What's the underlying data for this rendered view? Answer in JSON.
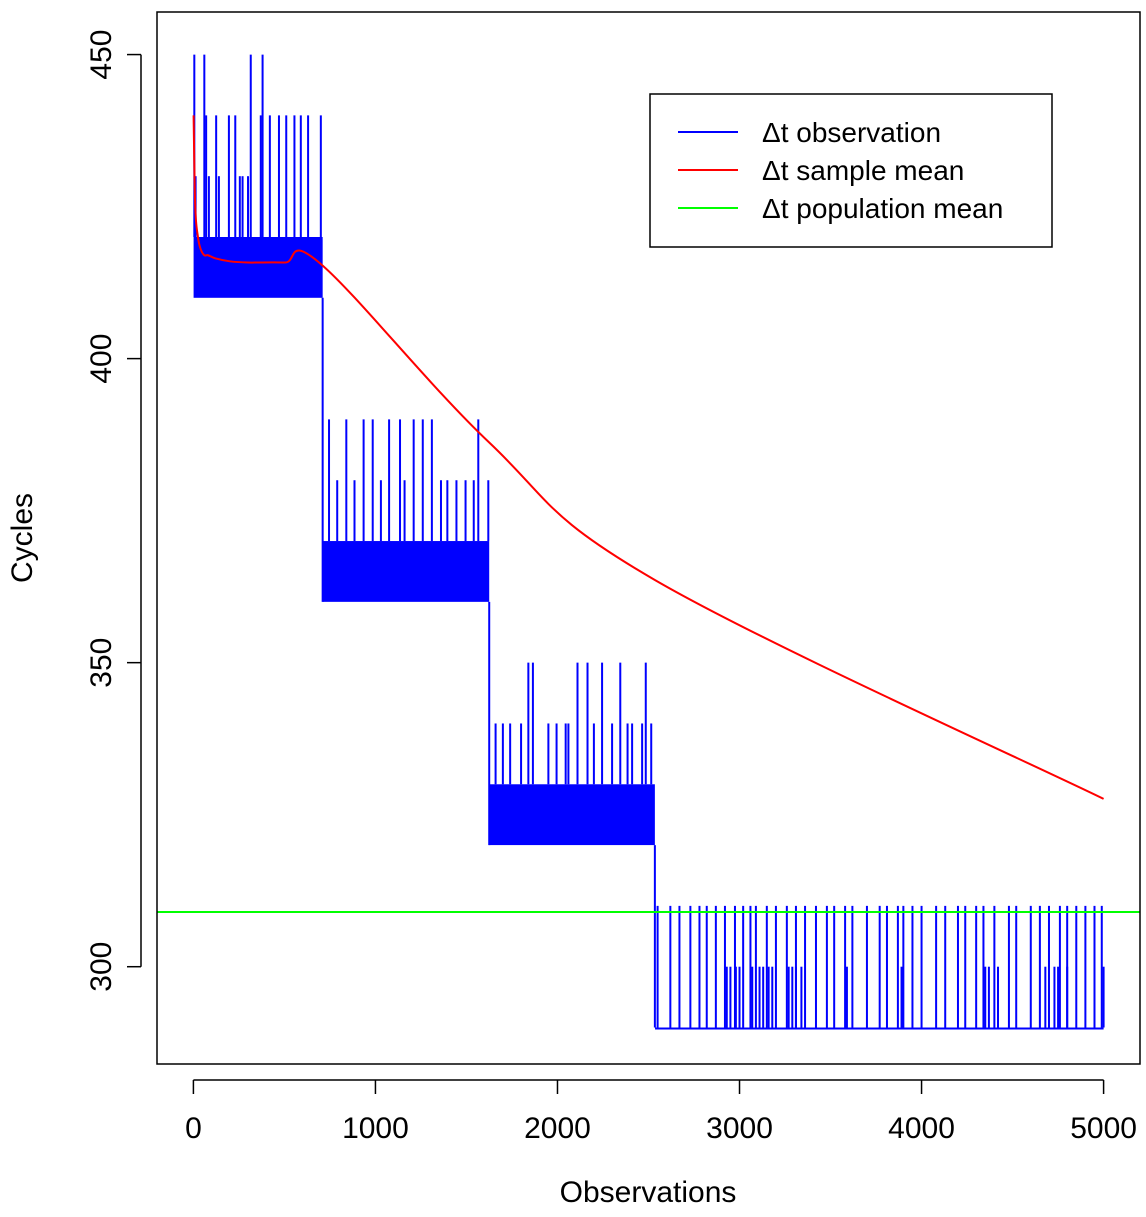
{
  "chart_data": {
    "type": "line",
    "title": "",
    "xlabel": "Observations",
    "ylabel": "Cycles",
    "xlim": [
      -200,
      5200
    ],
    "ylim": [
      284,
      457
    ],
    "x_ticks": [
      0,
      1000,
      2000,
      3000,
      4000,
      5000
    ],
    "y_ticks": [
      300,
      350,
      400,
      450
    ],
    "x_tick_labels": [
      "0",
      "1000",
      "2000",
      "3000",
      "4000",
      "5000"
    ],
    "y_tick_labels": [
      "300",
      "350",
      "400",
      "450"
    ],
    "grid": false,
    "legend_position": "top-right",
    "series": [
      {
        "name": "Δt observation",
        "color": "#0000ff",
        "segments": [
          {
            "x_start": 1,
            "x_end": 710,
            "low": 410,
            "high": 420,
            "spikes": [
              [
                5,
                450
              ],
              [
                12,
                430
              ],
              [
                40,
                420
              ],
              [
                60,
                450
              ],
              [
                70,
                440
              ],
              [
                85,
                430
              ],
              [
                110,
                420
              ],
              [
                125,
                440
              ],
              [
                140,
                430
              ],
              [
                170,
                420
              ],
              [
                195,
                440
              ],
              [
                230,
                440
              ],
              [
                255,
                430
              ],
              [
                270,
                430
              ],
              [
                300,
                430
              ],
              [
                315,
                450
              ],
              [
                345,
                420
              ],
              [
                370,
                440
              ],
              [
                380,
                450
              ],
              [
                420,
                440
              ],
              [
                470,
                440
              ],
              [
                510,
                440
              ],
              [
                555,
                440
              ],
              [
                590,
                440
              ],
              [
                630,
                440
              ],
              [
                700,
                440
              ]
            ]
          },
          {
            "x_start": 711,
            "x_end": 1625,
            "low": 360,
            "high": 370,
            "spikes": [
              [
                745,
                390
              ],
              [
                790,
                380
              ],
              [
                840,
                390
              ],
              [
                885,
                380
              ],
              [
                935,
                390
              ],
              [
                985,
                390
              ],
              [
                1030,
                380
              ],
              [
                1075,
                390
              ],
              [
                1135,
                390
              ],
              [
                1160,
                380
              ],
              [
                1210,
                390
              ],
              [
                1260,
                390
              ],
              [
                1310,
                390
              ],
              [
                1360,
                380
              ],
              [
                1395,
                380
              ],
              [
                1445,
                380
              ],
              [
                1495,
                380
              ],
              [
                1540,
                380
              ],
              [
                1565,
                390
              ],
              [
                1620,
                380
              ]
            ]
          },
          {
            "x_start": 1626,
            "x_end": 2535,
            "low": 320,
            "high": 330,
            "spikes": [
              [
                1660,
                340
              ],
              [
                1700,
                340
              ],
              [
                1740,
                340
              ],
              [
                1800,
                340
              ],
              [
                1840,
                350
              ],
              [
                1865,
                350
              ],
              [
                1950,
                340
              ],
              [
                1995,
                340
              ],
              [
                2045,
                340
              ],
              [
                2060,
                340
              ],
              [
                2110,
                350
              ],
              [
                2165,
                350
              ],
              [
                2200,
                340
              ],
              [
                2245,
                350
              ],
              [
                2300,
                340
              ],
              [
                2345,
                350
              ],
              [
                2385,
                340
              ],
              [
                2410,
                340
              ],
              [
                2465,
                340
              ],
              [
                2485,
                350
              ],
              [
                2515,
                340
              ]
            ]
          },
          {
            "x_start": 2536,
            "x_end": 5000,
            "low": 290,
            "high": 290,
            "dip_spikes": [
              [
                2550,
                310
              ],
              [
                2620,
                310
              ],
              [
                2670,
                310
              ],
              [
                2730,
                310
              ],
              [
                2780,
                310
              ],
              [
                2820,
                310
              ],
              [
                2870,
                310
              ],
              [
                2920,
                310
              ],
              [
                2975,
                310
              ],
              [
                3020,
                310
              ],
              [
                3060,
                310
              ],
              [
                3090,
                310
              ],
              [
                3150,
                310
              ],
              [
                3200,
                310
              ],
              [
                3260,
                310
              ],
              [
                3310,
                310
              ],
              [
                3360,
                310
              ],
              [
                3420,
                310
              ],
              [
                3480,
                310
              ],
              [
                3520,
                310
              ],
              [
                3580,
                310
              ],
              [
                3620,
                310
              ],
              [
                3700,
                310
              ],
              [
                3770,
                310
              ],
              [
                3810,
                310
              ],
              [
                3870,
                310
              ],
              [
                3900,
                310
              ],
              [
                3950,
                310
              ],
              [
                4000,
                310
              ],
              [
                4080,
                310
              ],
              [
                4130,
                310
              ],
              [
                4200,
                310
              ],
              [
                4240,
                310
              ],
              [
                4300,
                310
              ],
              [
                4340,
                310
              ],
              [
                4400,
                310
              ],
              [
                4480,
                310
              ],
              [
                4520,
                310
              ],
              [
                4600,
                310
              ],
              [
                4650,
                310
              ],
              [
                4700,
                310
              ],
              [
                4760,
                310
              ],
              [
                4800,
                310
              ],
              [
                4850,
                310
              ],
              [
                4900,
                310
              ],
              [
                4950,
                310
              ],
              [
                4990,
                310
              ],
              [
                2930,
                300
              ],
              [
                2950,
                300
              ],
              [
                2980,
                300
              ],
              [
                3000,
                300
              ],
              [
                3070,
                300
              ],
              [
                3110,
                300
              ],
              [
                3130,
                300
              ],
              [
                3160,
                300
              ],
              [
                3180,
                300
              ],
              [
                3270,
                300
              ],
              [
                3290,
                300
              ],
              [
                3310,
                300
              ],
              [
                3340,
                300
              ],
              [
                3590,
                300
              ],
              [
                3890,
                300
              ],
              [
                4350,
                300
              ],
              [
                4370,
                300
              ],
              [
                4420,
                300
              ],
              [
                4680,
                300
              ],
              [
                4730,
                300
              ],
              [
                4750,
                300
              ],
              [
                4800,
                300
              ],
              [
                5000,
                300
              ]
            ]
          }
        ]
      },
      {
        "name": "Δt sample mean",
        "color": "#ff0000",
        "x": [
          1,
          10,
          25,
          40,
          60,
          80,
          120,
          200,
          300,
          500,
          710,
          1625,
          2535,
          5000
        ],
        "values": [
          440,
          425,
          420,
          418,
          417,
          417,
          416.5,
          416,
          415.8,
          415.8,
          415.3,
          386.2,
          363.6,
          327.6
        ]
      },
      {
        "name": "Δt population mean",
        "color": "#00ff00",
        "value": 309
      }
    ]
  }
}
